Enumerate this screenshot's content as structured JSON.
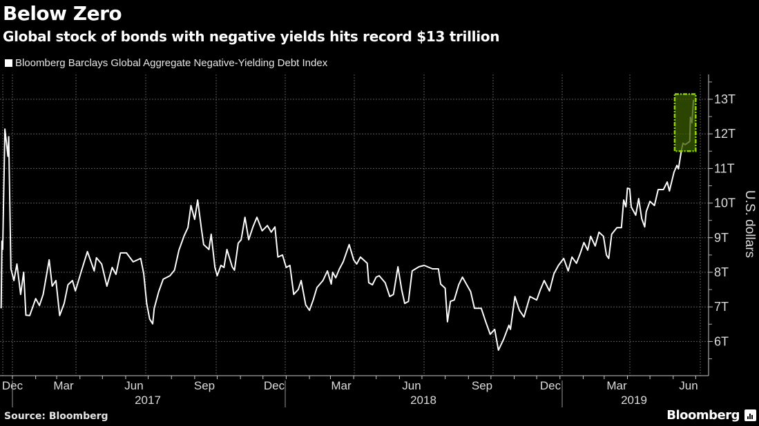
{
  "header": {
    "title": "Below Zero",
    "subtitle": "Global stock of bonds with negative yields hits record $13 trillion"
  },
  "footer": {
    "source": "Source: Bloomberg",
    "brand": "Bloomberg"
  },
  "colors": {
    "background": "#000000",
    "line": "#ffffff",
    "highlight_border": "#8fd400",
    "highlight_fill": "#3a5c00"
  },
  "chart_data": {
    "type": "line",
    "title": "Below Zero",
    "subtitle": "Global stock of bonds with negative yields hits record $13 trillion",
    "ylabel": "U.S. dollars",
    "xlabel": "",
    "ylim": [
      5,
      13.5
    ],
    "grid": true,
    "legend_placement": "top-left",
    "y_ticks": [
      {
        "value": 6,
        "label": "6T"
      },
      {
        "value": 7,
        "label": "7T"
      },
      {
        "value": 8,
        "label": "8T"
      },
      {
        "value": 9,
        "label": "9T"
      },
      {
        "value": 10,
        "label": "10T"
      },
      {
        "value": 11,
        "label": "11T"
      },
      {
        "value": 12,
        "label": "12T"
      },
      {
        "value": 13,
        "label": "13T"
      }
    ],
    "x_tick_labels": [
      "Dec",
      "Mar",
      "Jun",
      "Sep",
      "Dec",
      "Mar",
      "Jun",
      "Sep",
      "Dec",
      "Mar",
      "Jun"
    ],
    "x_year_labels": [
      "2017",
      "2018",
      "2019"
    ],
    "highlight": {
      "x": [
        "2019-06-03",
        "2019-07-01"
      ],
      "y": [
        11.5,
        13.15
      ]
    },
    "series": [
      {
        "name": "Bloomberg Barclays Global Aggregate Negative-Yielding Debt Index",
        "unit": "trillion USD",
        "points": [
          [
            "2016-12-17",
            6.96
          ],
          [
            "2016-12-18",
            8.9
          ],
          [
            "2016-12-19",
            8.66
          ],
          [
            "2016-12-22",
            12.14
          ],
          [
            "2016-12-26",
            11.35
          ],
          [
            "2016-12-27",
            11.92
          ],
          [
            "2016-12-30",
            8.1
          ],
          [
            "2017-01-03",
            7.76
          ],
          [
            "2017-01-07",
            8.24
          ],
          [
            "2017-01-12",
            7.36
          ],
          [
            "2017-01-16",
            8.0
          ],
          [
            "2017-01-19",
            6.76
          ],
          [
            "2017-01-24",
            6.75
          ],
          [
            "2017-02-01",
            7.24
          ],
          [
            "2017-02-06",
            7.04
          ],
          [
            "2017-02-11",
            7.36
          ],
          [
            "2017-02-19",
            8.36
          ],
          [
            "2017-02-23",
            7.6
          ],
          [
            "2017-02-28",
            7.76
          ],
          [
            "2017-03-05",
            6.75
          ],
          [
            "2017-03-11",
            7.1
          ],
          [
            "2017-03-16",
            7.64
          ],
          [
            "2017-03-22",
            7.76
          ],
          [
            "2017-03-26",
            7.46
          ],
          [
            "2017-04-03",
            8.04
          ],
          [
            "2017-04-11",
            8.6
          ],
          [
            "2017-04-20",
            8.04
          ],
          [
            "2017-04-23",
            8.42
          ],
          [
            "2017-04-30",
            8.24
          ],
          [
            "2017-05-07",
            7.6
          ],
          [
            "2017-05-14",
            8.14
          ],
          [
            "2017-05-19",
            7.94
          ],
          [
            "2017-05-25",
            8.56
          ],
          [
            "2017-06-02",
            8.56
          ],
          [
            "2017-06-11",
            8.3
          ],
          [
            "2017-06-21",
            8.4
          ],
          [
            "2017-06-25",
            7.96
          ],
          [
            "2017-06-29",
            7.1
          ],
          [
            "2017-07-03",
            6.65
          ],
          [
            "2017-07-07",
            6.51
          ],
          [
            "2017-07-09",
            6.96
          ],
          [
            "2017-07-15",
            7.44
          ],
          [
            "2017-07-21",
            7.8
          ],
          [
            "2017-07-30",
            7.9
          ],
          [
            "2017-08-05",
            8.06
          ],
          [
            "2017-08-11",
            8.64
          ],
          [
            "2017-08-18",
            9.06
          ],
          [
            "2017-08-23",
            9.29
          ],
          [
            "2017-08-27",
            9.93
          ],
          [
            "2017-09-01",
            9.53
          ],
          [
            "2017-09-05",
            10.09
          ],
          [
            "2017-09-10",
            9.25
          ],
          [
            "2017-09-13",
            8.8
          ],
          [
            "2017-09-20",
            8.66
          ],
          [
            "2017-09-23",
            9.1
          ],
          [
            "2017-09-28",
            8.14
          ],
          [
            "2017-10-01",
            7.9
          ],
          [
            "2017-10-06",
            8.2
          ],
          [
            "2017-10-10",
            8.14
          ],
          [
            "2017-10-14",
            8.66
          ],
          [
            "2017-10-21",
            8.16
          ],
          [
            "2017-10-24",
            8.06
          ],
          [
            "2017-10-29",
            8.84
          ],
          [
            "2017-11-02",
            8.94
          ],
          [
            "2017-11-07",
            9.59
          ],
          [
            "2017-11-12",
            8.94
          ],
          [
            "2017-11-18",
            9.33
          ],
          [
            "2017-11-23",
            9.59
          ],
          [
            "2017-11-30",
            9.2
          ],
          [
            "2017-12-07",
            9.35
          ],
          [
            "2017-12-12",
            9.16
          ],
          [
            "2017-12-17",
            9.31
          ],
          [
            "2017-12-21",
            8.44
          ],
          [
            "2017-12-27",
            8.5
          ],
          [
            "2018-01-01",
            8.14
          ],
          [
            "2018-01-06",
            8.2
          ],
          [
            "2018-01-11",
            7.36
          ],
          [
            "2018-01-17",
            7.5
          ],
          [
            "2018-01-21",
            7.76
          ],
          [
            "2018-01-27",
            7.06
          ],
          [
            "2018-02-01",
            6.9
          ],
          [
            "2018-02-06",
            7.2
          ],
          [
            "2018-02-11",
            7.56
          ],
          [
            "2018-02-19",
            7.76
          ],
          [
            "2018-02-25",
            8.04
          ],
          [
            "2018-03-02",
            7.66
          ],
          [
            "2018-03-04",
            8.0
          ],
          [
            "2018-03-08",
            7.84
          ],
          [
            "2018-03-13",
            8.1
          ],
          [
            "2018-03-18",
            8.3
          ],
          [
            "2018-03-26",
            8.8
          ],
          [
            "2018-04-01",
            8.36
          ],
          [
            "2018-04-05",
            8.24
          ],
          [
            "2018-04-10",
            8.44
          ],
          [
            "2018-04-19",
            8.26
          ],
          [
            "2018-04-21",
            7.7
          ],
          [
            "2018-04-26",
            7.64
          ],
          [
            "2018-05-01",
            7.86
          ],
          [
            "2018-05-05",
            7.9
          ],
          [
            "2018-05-13",
            7.7
          ],
          [
            "2018-05-19",
            7.3
          ],
          [
            "2018-05-24",
            7.36
          ],
          [
            "2018-05-30",
            8.16
          ],
          [
            "2018-06-04",
            7.5
          ],
          [
            "2018-06-08",
            7.1
          ],
          [
            "2018-06-13",
            7.16
          ],
          [
            "2018-06-18",
            8.04
          ],
          [
            "2018-06-27",
            8.16
          ],
          [
            "2018-07-04",
            8.2
          ],
          [
            "2018-07-15",
            8.1
          ],
          [
            "2018-07-23",
            8.1
          ],
          [
            "2018-07-26",
            7.66
          ],
          [
            "2018-08-01",
            7.54
          ],
          [
            "2018-08-04",
            6.57
          ],
          [
            "2018-08-08",
            7.16
          ],
          [
            "2018-08-13",
            7.2
          ],
          [
            "2018-08-19",
            7.64
          ],
          [
            "2018-08-24",
            7.86
          ],
          [
            "2018-09-04",
            7.44
          ],
          [
            "2018-09-09",
            6.96
          ],
          [
            "2018-09-18",
            6.96
          ],
          [
            "2018-09-24",
            6.57
          ],
          [
            "2018-09-30",
            6.21
          ],
          [
            "2018-10-06",
            6.35
          ],
          [
            "2018-10-11",
            5.75
          ],
          [
            "2018-10-18",
            6.07
          ],
          [
            "2018-10-25",
            6.47
          ],
          [
            "2018-10-27",
            6.35
          ],
          [
            "2018-11-02",
            7.3
          ],
          [
            "2018-11-08",
            6.9
          ],
          [
            "2018-11-14",
            6.71
          ],
          [
            "2018-11-22",
            7.3
          ],
          [
            "2018-12-01",
            7.2
          ],
          [
            "2018-12-06",
            7.5
          ],
          [
            "2018-12-11",
            7.76
          ],
          [
            "2018-12-18",
            7.46
          ],
          [
            "2018-12-24",
            7.96
          ],
          [
            "2018-12-30",
            8.2
          ],
          [
            "2019-01-06",
            8.4
          ],
          [
            "2019-01-12",
            8.04
          ],
          [
            "2019-01-17",
            8.44
          ],
          [
            "2019-01-23",
            8.26
          ],
          [
            "2019-01-28",
            8.54
          ],
          [
            "2019-02-02",
            8.86
          ],
          [
            "2019-02-07",
            8.64
          ],
          [
            "2019-02-11",
            9.04
          ],
          [
            "2019-02-17",
            8.76
          ],
          [
            "2019-02-22",
            9.16
          ],
          [
            "2019-02-28",
            9.04
          ],
          [
            "2019-03-04",
            8.5
          ],
          [
            "2019-03-07",
            8.4
          ],
          [
            "2019-03-11",
            9.1
          ],
          [
            "2019-03-18",
            9.29
          ],
          [
            "2019-03-24",
            9.29
          ],
          [
            "2019-03-27",
            10.09
          ],
          [
            "2019-03-30",
            9.89
          ],
          [
            "2019-04-01",
            10.43
          ],
          [
            "2019-04-04",
            10.41
          ],
          [
            "2019-04-06",
            9.89
          ],
          [
            "2019-04-12",
            9.65
          ],
          [
            "2019-04-16",
            10.13
          ],
          [
            "2019-04-20",
            9.55
          ],
          [
            "2019-04-24",
            9.31
          ],
          [
            "2019-04-26",
            9.75
          ],
          [
            "2019-05-01",
            10.05
          ],
          [
            "2019-05-07",
            9.93
          ],
          [
            "2019-05-12",
            10.39
          ],
          [
            "2019-05-19",
            10.39
          ],
          [
            "2019-05-24",
            10.61
          ],
          [
            "2019-05-27",
            10.35
          ],
          [
            "2019-06-02",
            10.89
          ],
          [
            "2019-06-06",
            11.09
          ],
          [
            "2019-06-08",
            10.99
          ],
          [
            "2019-06-12",
            11.53
          ],
          [
            "2019-06-14",
            11.73
          ],
          [
            "2019-06-17",
            11.69
          ],
          [
            "2019-06-23",
            11.78
          ],
          [
            "2019-06-24",
            12.48
          ],
          [
            "2019-06-26",
            12.32
          ],
          [
            "2019-06-28",
            12.98
          ]
        ]
      }
    ]
  }
}
